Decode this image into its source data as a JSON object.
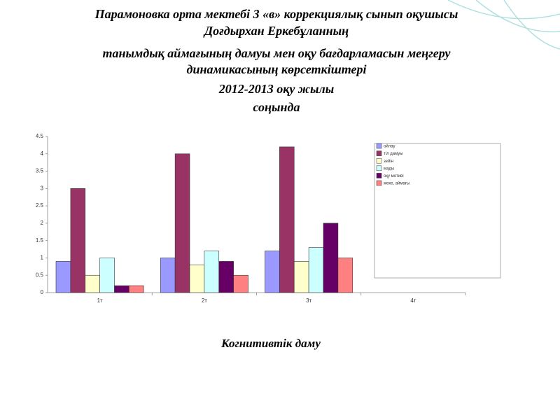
{
  "chart_data": {
    "type": "bar",
    "title_lines": [
      "Парамоновка орта мектебі    3 «в» коррекциялық  сынып  оқушысы",
      "Доғдырхан  Еркебұланның",
      "танымдық  аймағының  дамуы мен  оқу бағдарламасын меңгеру",
      "динамикасының  көрсеткіштері",
      "2012-2013 оқу жылы",
      "соңында"
    ],
    "categories": [
      "1т",
      "2т",
      "3т",
      "4т"
    ],
    "series": [
      {
        "name": "ойлау",
        "color": "#9999ff",
        "values": [
          0.9,
          1,
          1.2,
          null
        ]
      },
      {
        "name": "тіл дамуы",
        "color": "#993366",
        "values": [
          3,
          4,
          4.2,
          null
        ]
      },
      {
        "name": "зейін",
        "color": "#ffffcc",
        "values": [
          0.5,
          0.8,
          0.9,
          null
        ]
      },
      {
        "name": "мады",
        "color": "#ccffff",
        "values": [
          1,
          1.2,
          1.3,
          null
        ]
      },
      {
        "name": "оқу мотиві",
        "color": "#660066",
        "values": [
          0.2,
          0.9,
          2,
          null
        ]
      },
      {
        "name": "жеке, аймағы",
        "color": "#ff8080",
        "values": [
          0.2,
          0.5,
          1,
          null
        ]
      }
    ],
    "ylim": [
      0,
      4.5
    ],
    "yticks": [
      0,
      0.5,
      1,
      1.5,
      2,
      2.5,
      3,
      3.5,
      4,
      4.5
    ],
    "caption": "Когнитивтік даму"
  }
}
